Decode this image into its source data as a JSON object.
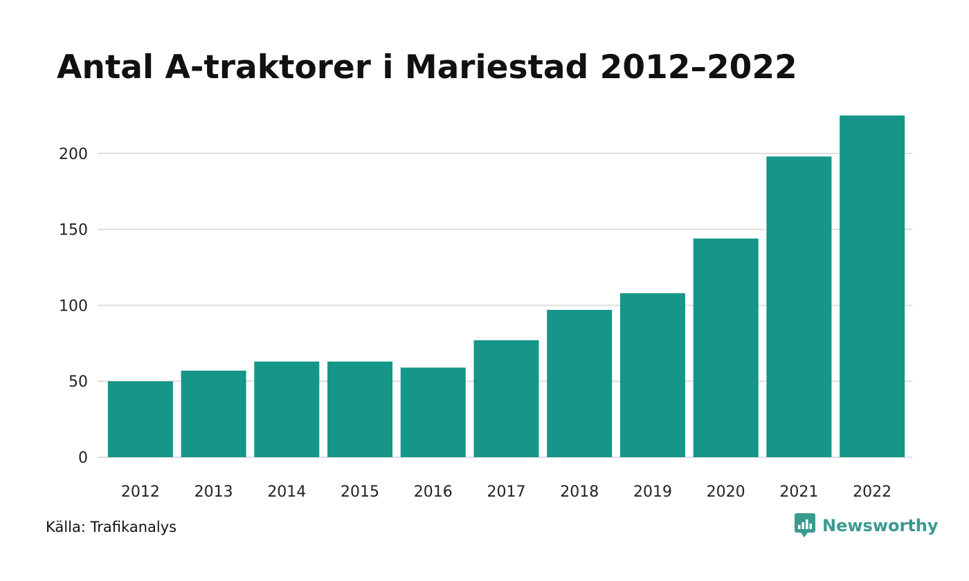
{
  "chart_data": {
    "type": "bar",
    "title": "Antal A-traktorer i Mariestad 2012–2022",
    "categories": [
      "2012",
      "2013",
      "2014",
      "2015",
      "2016",
      "2017",
      "2018",
      "2019",
      "2020",
      "2021",
      "2022"
    ],
    "values": [
      50,
      57,
      63,
      63,
      59,
      77,
      97,
      108,
      144,
      198,
      225
    ],
    "yticks": [
      0,
      50,
      100,
      150,
      200
    ],
    "ylim": [
      0,
      225
    ],
    "xlabel": "",
    "ylabel": "",
    "grid": true,
    "bar_color": "#159688"
  },
  "footer": {
    "source": "Källa: Trafikanalys",
    "brand": "Newsworthy",
    "brand_color": "#3a9a8f",
    "brand_icon": "newsworthy-logo-icon"
  }
}
